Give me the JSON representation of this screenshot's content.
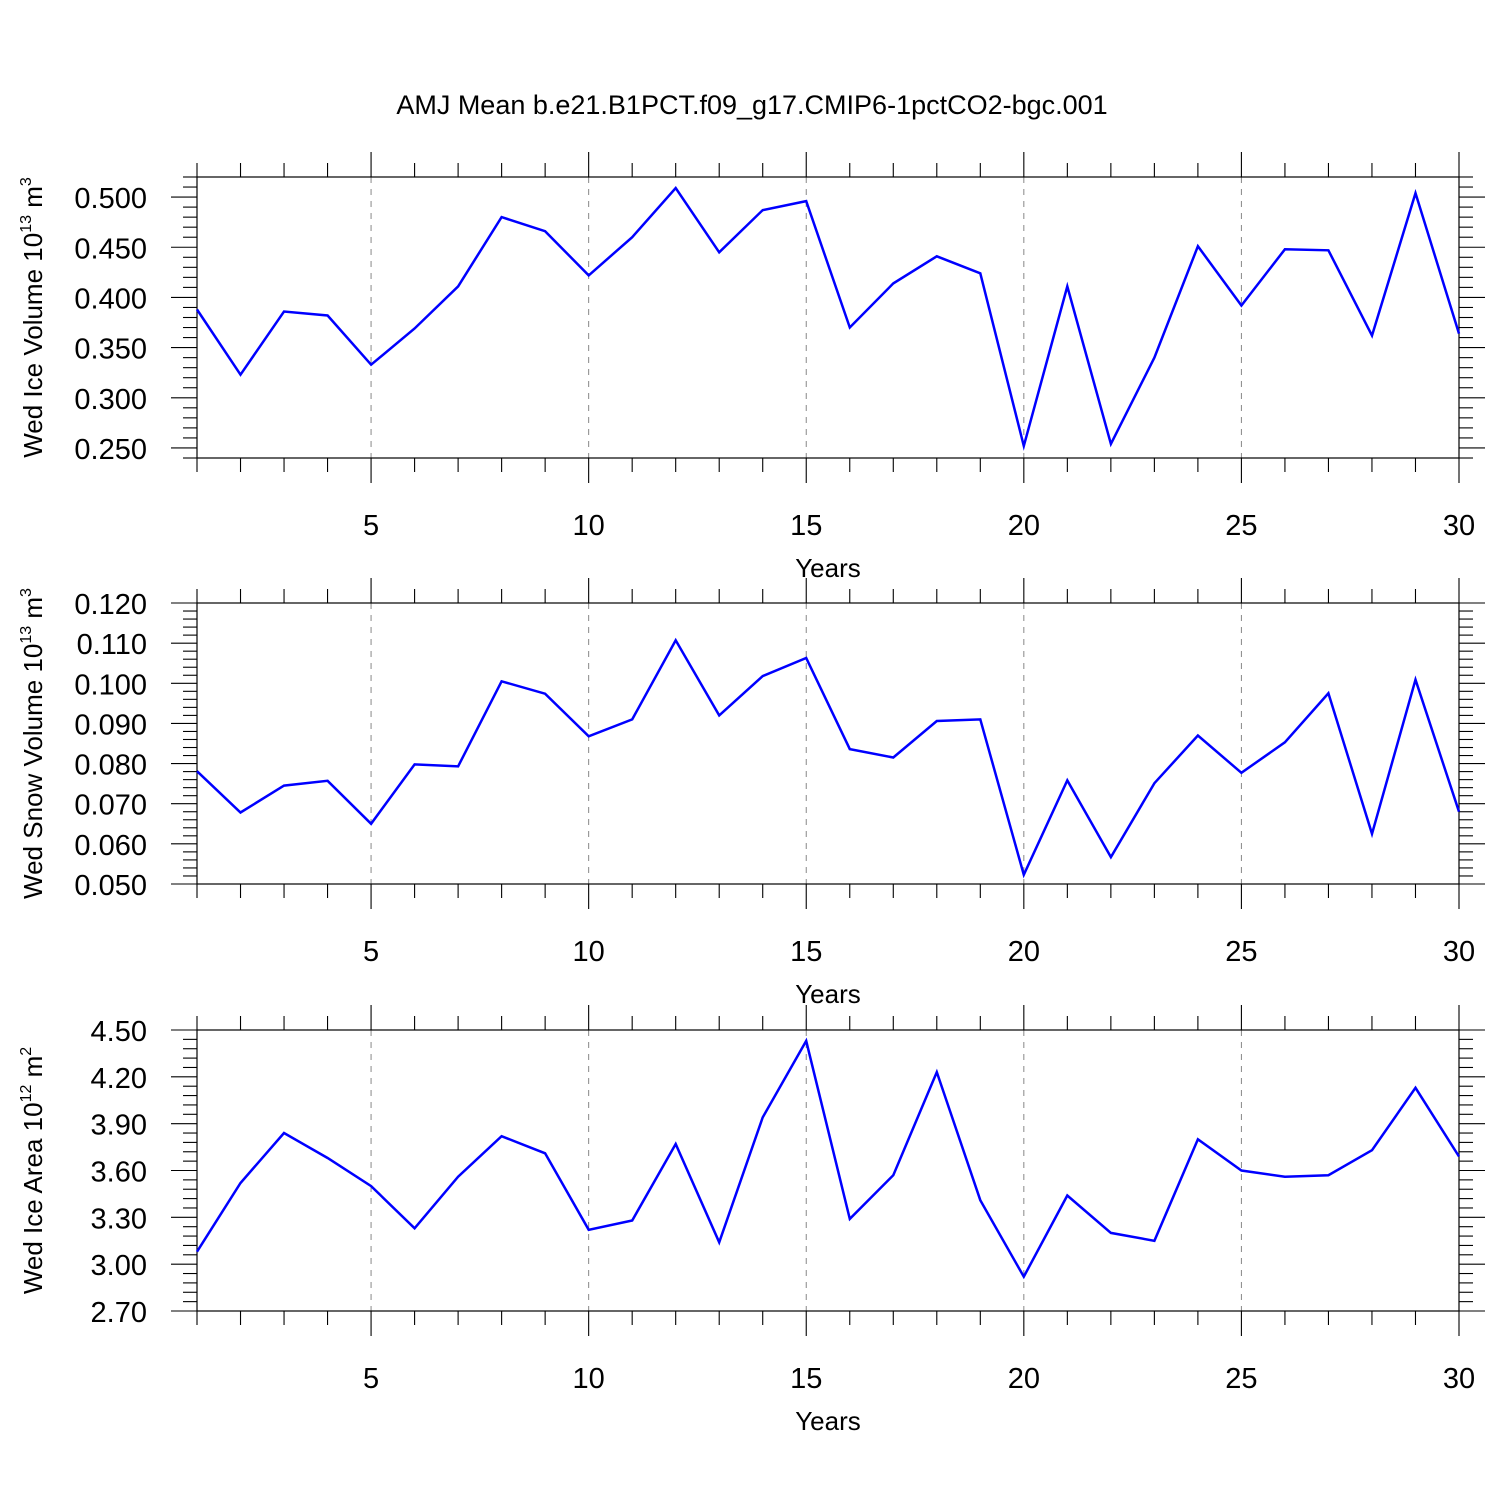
{
  "title": "AMJ Mean b.e21.B1PCT.f09_g17.CMIP6-1pctCO2-bgc.001",
  "chart_data": [
    {
      "type": "line",
      "ylabel": {
        "main": "Wed Ice Volume 10",
        "exp": "13",
        "unit": " m",
        "unit_exp": "3"
      },
      "xlabel": "Years",
      "xlim": [
        1,
        30
      ],
      "ylim": [
        0.24,
        0.52
      ],
      "xticks": [
        5,
        10,
        15,
        20,
        25,
        30
      ],
      "xtick_labels": [
        "5",
        "10",
        "15",
        "20",
        "25",
        "30"
      ],
      "yticks": [
        0.25,
        0.3,
        0.35,
        0.4,
        0.45,
        0.5
      ],
      "ytick_labels": [
        "0.250",
        "0.300",
        "0.350",
        "0.400",
        "0.450",
        "0.500"
      ],
      "grid": "vertical dashed at major x ticks",
      "color": "#0000ff",
      "x": [
        1,
        2,
        3,
        4,
        5,
        6,
        7,
        8,
        9,
        10,
        11,
        12,
        13,
        14,
        15,
        16,
        17,
        18,
        19,
        20,
        21,
        22,
        23,
        24,
        25,
        26,
        27,
        28,
        29,
        30
      ],
      "values": [
        0.388,
        0.323,
        0.386,
        0.382,
        0.333,
        0.369,
        0.411,
        0.48,
        0.466,
        0.422,
        0.46,
        0.509,
        0.445,
        0.487,
        0.496,
        0.37,
        0.414,
        0.441,
        0.424,
        0.252,
        0.411,
        0.254,
        0.34,
        0.451,
        0.392,
        0.448,
        0.447,
        0.362,
        0.504,
        0.364
      ]
    },
    {
      "type": "line",
      "ylabel": {
        "main": "Wed Snow Volume 10",
        "exp": "13",
        "unit": " m",
        "unit_exp": "3"
      },
      "xlabel": "Years",
      "xlim": [
        1,
        30
      ],
      "ylim": [
        0.05,
        0.12
      ],
      "xticks": [
        5,
        10,
        15,
        20,
        25,
        30
      ],
      "xtick_labels": [
        "5",
        "10",
        "15",
        "20",
        "25",
        "30"
      ],
      "yticks": [
        0.05,
        0.06,
        0.07,
        0.08,
        0.09,
        0.1,
        0.11,
        0.12
      ],
      "ytick_labels": [
        "0.050",
        "0.060",
        "0.070",
        "0.080",
        "0.090",
        "0.100",
        "0.110",
        "0.120"
      ],
      "grid": "vertical dashed at major x ticks",
      "color": "#0000ff",
      "x": [
        1,
        2,
        3,
        4,
        5,
        6,
        7,
        8,
        9,
        10,
        11,
        12,
        13,
        14,
        15,
        16,
        17,
        18,
        19,
        20,
        21,
        22,
        23,
        24,
        25,
        26,
        27,
        28,
        29,
        30
      ],
      "values": [
        0.0781,
        0.0678,
        0.0745,
        0.0757,
        0.065,
        0.0798,
        0.0793,
        0.1005,
        0.0974,
        0.0868,
        0.091,
        0.1107,
        0.092,
        0.1018,
        0.1063,
        0.0836,
        0.0815,
        0.0906,
        0.091,
        0.0523,
        0.0758,
        0.0567,
        0.0751,
        0.087,
        0.0777,
        0.0853,
        0.0975,
        0.0625,
        0.1009,
        0.068
      ]
    },
    {
      "type": "line",
      "ylabel": {
        "main": "Wed Ice Area 10",
        "exp": "12",
        "unit": " m",
        "unit_exp": "2"
      },
      "xlabel": "Years",
      "xlim": [
        1,
        30
      ],
      "ylim": [
        2.7,
        4.5
      ],
      "xticks": [
        5,
        10,
        15,
        20,
        25,
        30
      ],
      "xtick_labels": [
        "5",
        "10",
        "15",
        "20",
        "25",
        "30"
      ],
      "yticks": [
        2.7,
        3.0,
        3.3,
        3.6,
        3.9,
        4.2,
        4.5
      ],
      "ytick_labels": [
        "2.70",
        "3.00",
        "3.30",
        "3.60",
        "3.90",
        "4.20",
        "4.50"
      ],
      "grid": "vertical dashed at major x ticks",
      "color": "#0000ff",
      "x": [
        1,
        2,
        3,
        4,
        5,
        6,
        7,
        8,
        9,
        10,
        11,
        12,
        13,
        14,
        15,
        16,
        17,
        18,
        19,
        20,
        21,
        22,
        23,
        24,
        25,
        26,
        27,
        28,
        29,
        30
      ],
      "values": [
        3.08,
        3.52,
        3.84,
        3.68,
        3.5,
        3.23,
        3.56,
        3.82,
        3.71,
        3.22,
        3.28,
        3.77,
        3.14,
        3.94,
        4.43,
        3.29,
        3.57,
        4.23,
        3.41,
        2.92,
        3.44,
        3.2,
        3.15,
        3.8,
        3.6,
        3.56,
        3.57,
        3.73,
        4.13,
        3.69
      ]
    }
  ]
}
